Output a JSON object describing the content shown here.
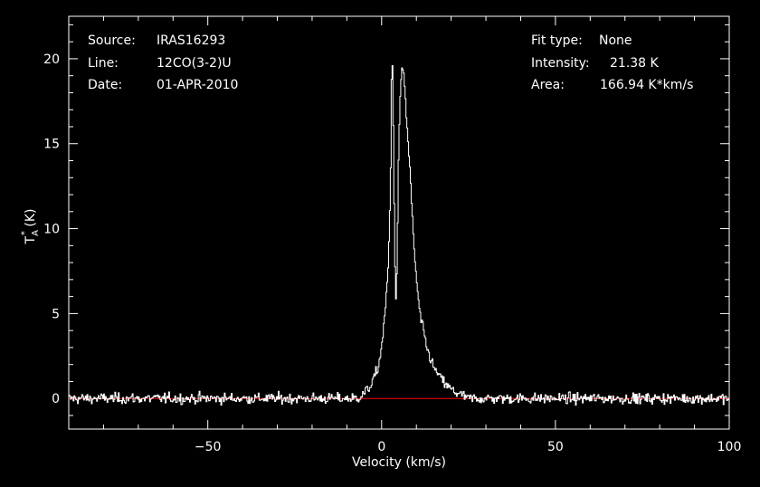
{
  "chart_data": {
    "type": "line",
    "title": "",
    "xlabel": "Velocity (km/s)",
    "ylabel": "T*A (K)",
    "xlim": [
      -90,
      100
    ],
    "ylim": [
      -1.8,
      22.5
    ],
    "xticks": [
      -50,
      0,
      50,
      100
    ],
    "xtick_labels": [
      "−50",
      "0",
      "50",
      "100"
    ],
    "yticks": [
      0,
      5,
      10,
      15,
      20
    ],
    "ytick_labels": [
      "0",
      "5",
      "10",
      "15",
      "20"
    ],
    "grid": false,
    "baseline": 0,
    "baseline_color": "#ff0000",
    "line_color": "#ffffff",
    "background": "#000000",
    "annotations": {
      "source_label": "Source:",
      "source_value": "IRAS16293",
      "line_label": "Line:",
      "line_value": "12CO(3-2)U",
      "date_label": "Date:",
      "date_value": "01-APR-2010",
      "fit_type_label": "Fit type:",
      "fit_type_value": "None",
      "intensity_label": "Intensity:",
      "intensity_value": "21.38 K",
      "area_label": "Area:",
      "area_value": "166.94 K*km/s"
    },
    "profile_velocity": [
      -90,
      -7,
      -5,
      -3,
      -1,
      0,
      1,
      2,
      2.6,
      3.0,
      3.4,
      3.8,
      4.2,
      4.6,
      5.0,
      5.5,
      6.0,
      6.5,
      7,
      8,
      9,
      10,
      11,
      12,
      13,
      14,
      15,
      17,
      19,
      21,
      23,
      25,
      100
    ],
    "profile_temperature": [
      0,
      0,
      0.3,
      0.8,
      1.8,
      3.0,
      5.0,
      8.0,
      13.0,
      21.3,
      16.0,
      8.0,
      5.6,
      10.0,
      15.5,
      18.5,
      19.4,
      19.0,
      17.0,
      14.0,
      10.0,
      7.0,
      5.0,
      4.0,
      3.0,
      2.4,
      1.8,
      1.2,
      0.7,
      0.4,
      0.2,
      0.0,
      0
    ],
    "noise_rms_K": 0.22
  }
}
